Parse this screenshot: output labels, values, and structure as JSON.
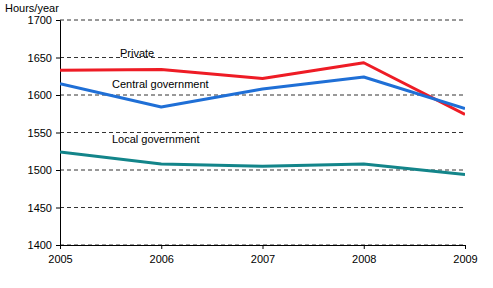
{
  "chart_data": {
    "type": "line",
    "y_label": "Hours/year",
    "x": [
      2005,
      2006,
      2007,
      2008,
      2009
    ],
    "xlim": [
      2005,
      2009
    ],
    "xticks": [
      2005,
      2006,
      2007,
      2008,
      2009
    ],
    "ylim": [
      1400,
      1700
    ],
    "yticks": [
      1400,
      1450,
      1500,
      1550,
      1600,
      1650,
      1700
    ],
    "grid": true,
    "series": [
      {
        "name": "Private",
        "color": "#ee1c25",
        "values": [
          1633,
          1634,
          1622,
          1643,
          1574
        ]
      },
      {
        "name": "Central government",
        "color": "#1f6fd6",
        "values": [
          1615,
          1584,
          1608,
          1624,
          1582
        ]
      },
      {
        "name": "Local government",
        "color": "#13858a",
        "values": [
          1524,
          1508,
          1505,
          1508,
          1494
        ]
      }
    ]
  }
}
